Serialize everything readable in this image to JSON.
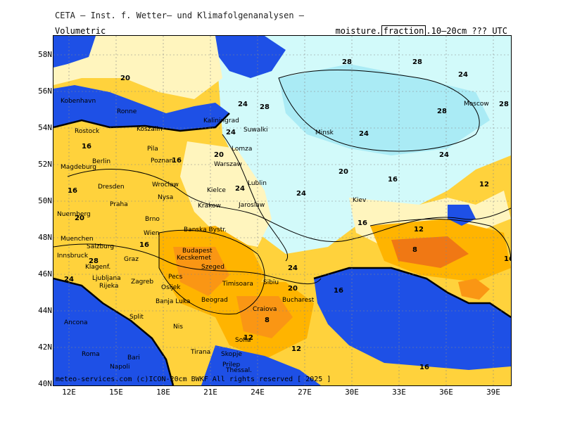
{
  "header": {
    "title": "CETA – Inst. f. Wetter– und Klimafolgenanalysen –"
  },
  "map": {
    "label_left": "Volumetric",
    "label_right_prefix": "moisture.",
    "label_right_box": "fraction",
    "label_right_suffix": ".10–20cm ??? UTC",
    "footer": "meteo-services.com  (c)ICON-20cm BWKF  All rights reserved  [ 2025 ]",
    "lat_labels": [
      "58N",
      "56N",
      "54N",
      "52N",
      "50N",
      "48N",
      "46N",
      "44N",
      "42N",
      "40N"
    ],
    "lon_labels": [
      "12E",
      "15E",
      "18E",
      "21E",
      "24E",
      "27E",
      "30E",
      "33E",
      "36E",
      "39E"
    ],
    "cities": [
      "Kobenhavn",
      "Ronne",
      "Rostock",
      "Koszalin",
      "Kaliningrad",
      "Suwalki",
      "Minsk",
      "Moscow",
      "Berlin",
      "Magdeburg",
      "Pila",
      "Poznan",
      "Lomza",
      "Warszaw",
      "Dresden",
      "Wroclaw",
      "Nysa",
      "Kielce",
      "Lublin",
      "Praha",
      "Krakow",
      "Jaroslaw",
      "Kiev",
      "Brno",
      "Nuernberg",
      "Muenchen",
      "Salzburg",
      "Wien",
      "Banska Bystr.",
      "Innsbruck",
      "Budapest",
      "Kecskemet",
      "Szeged",
      "Graz",
      "Klagenf.",
      "Ljubljana",
      "Zagreb",
      "Pecs",
      "Osijek",
      "Rijeka",
      "Timisoara",
      "Sibiu",
      "Banja Luka",
      "Beograd",
      "Bucharest",
      "Craiova",
      "Split",
      "Nis",
      "Sofia",
      "Ancona",
      "Roma",
      "Skopje",
      "Prilep",
      "Napoli",
      "Bari",
      "Tirana",
      "Thessal."
    ],
    "contour_labels": [
      "16",
      "20",
      "24",
      "28",
      "12",
      "8"
    ],
    "colors": {
      "sea": "#1e50e6",
      "very_dry": "#f07814",
      "dry": "#fa9614",
      "moderate": "#ffb400",
      "medium": "#ffd23c",
      "light": "#fff5be",
      "wet": "#d2fafa",
      "very_wet": "#aaebf5",
      "coast": "#6e8c6e"
    }
  }
}
